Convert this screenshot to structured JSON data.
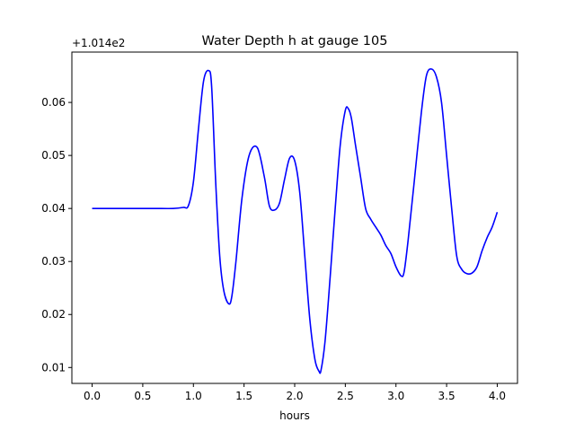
{
  "chart_data": {
    "type": "line",
    "title": "Water Depth h at gauge 105",
    "xlabel": "hours",
    "ylabel": "",
    "offset_text": "+1.014e2",
    "xlim": [
      -0.2,
      4.2
    ],
    "ylim": [
      0.007,
      0.0695
    ],
    "xticks": [
      0.0,
      0.5,
      1.0,
      1.5,
      2.0,
      2.5,
      3.0,
      3.5,
      4.0
    ],
    "xtick_labels": [
      "0.0",
      "0.5",
      "1.0",
      "1.5",
      "2.0",
      "2.5",
      "3.0",
      "3.5",
      "4.0"
    ],
    "yticks": [
      0.01,
      0.02,
      0.03,
      0.04,
      0.05,
      0.06
    ],
    "ytick_labels": [
      "0.01",
      "0.02",
      "0.03",
      "0.04",
      "0.05",
      "0.06"
    ],
    "grid": false,
    "color": "#0000ff",
    "series": [
      {
        "x": [
          0.0,
          0.3,
          0.6,
          0.8,
          0.9,
          0.95,
          1.0,
          1.05,
          1.1,
          1.15,
          1.18,
          1.22,
          1.26,
          1.3,
          1.35,
          1.38,
          1.42,
          1.48,
          1.55,
          1.63,
          1.7,
          1.75,
          1.8,
          1.85,
          1.9,
          1.95,
          2.0,
          2.05,
          2.1,
          2.15,
          2.2,
          2.24,
          2.26,
          2.3,
          2.35,
          2.4,
          2.45,
          2.5,
          2.53,
          2.56,
          2.6,
          2.65,
          2.7,
          2.75,
          2.8,
          2.85,
          2.9,
          2.95,
          3.0,
          3.05,
          3.08,
          3.12,
          3.18,
          3.25,
          3.3,
          3.35,
          3.4,
          3.45,
          3.5,
          3.55,
          3.6,
          3.65,
          3.7,
          3.75,
          3.8,
          3.85,
          3.9,
          3.95,
          4.0
        ],
        "y": [
          0.04,
          0.04,
          0.04,
          0.04,
          0.0402,
          0.0405,
          0.045,
          0.055,
          0.064,
          0.066,
          0.063,
          0.045,
          0.031,
          0.0245,
          0.022,
          0.0235,
          0.03,
          0.042,
          0.05,
          0.0515,
          0.046,
          0.0405,
          0.0397,
          0.041,
          0.0455,
          0.0495,
          0.049,
          0.043,
          0.031,
          0.019,
          0.0115,
          0.0093,
          0.0095,
          0.015,
          0.027,
          0.04,
          0.052,
          0.0585,
          0.0588,
          0.057,
          0.052,
          0.046,
          0.04,
          0.038,
          0.0365,
          0.035,
          0.033,
          0.0315,
          0.029,
          0.0273,
          0.028,
          0.034,
          0.045,
          0.058,
          0.065,
          0.0663,
          0.0648,
          0.06,
          0.05,
          0.04,
          0.031,
          0.0285,
          0.0277,
          0.0278,
          0.029,
          0.032,
          0.0345,
          0.0365,
          0.0393
        ]
      }
    ]
  }
}
